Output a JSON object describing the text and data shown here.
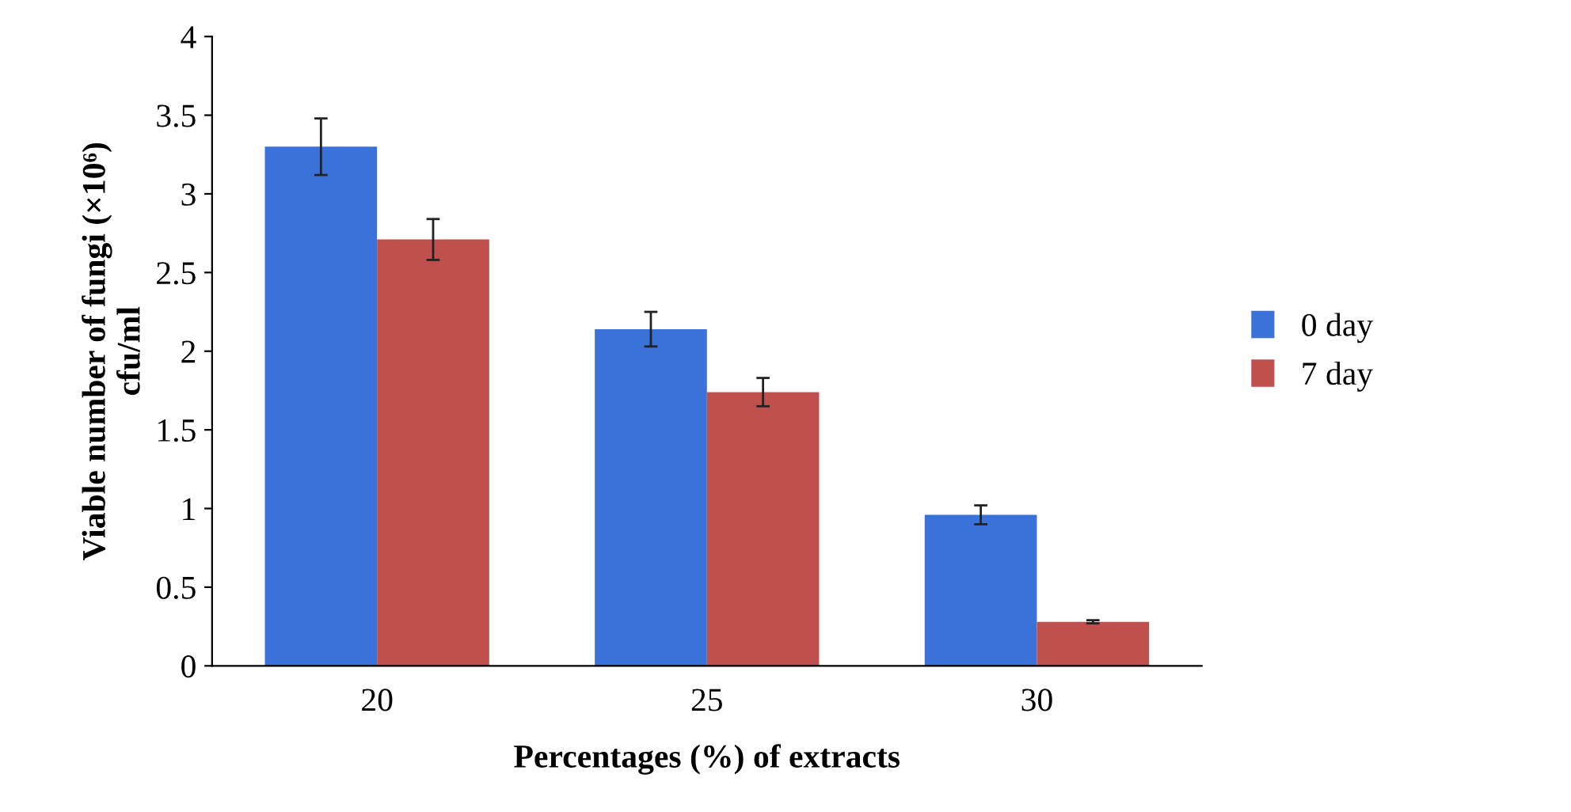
{
  "chart_data": {
    "type": "bar",
    "xlabel": "Percentages (%) of extracts",
    "ylabel": "Viable number of fungi (×10⁶)\ncfu/ml",
    "categories": [
      "20",
      "25",
      "30"
    ],
    "series": [
      {
        "name": "0 day",
        "color": "#3b72d9",
        "values": [
          3.3,
          2.14,
          0.96
        ],
        "errors": [
          0.18,
          0.11,
          0.06
        ]
      },
      {
        "name": "7 day",
        "color": "#c0504d",
        "values": [
          2.71,
          1.74,
          0.28
        ],
        "errors": [
          0.13,
          0.09,
          0.01
        ]
      }
    ],
    "ylim": [
      0,
      4
    ],
    "yticks": [
      0,
      0.5,
      1,
      1.5,
      2,
      2.5,
      3,
      3.5,
      4
    ],
    "grid": false,
    "legend": "right"
  }
}
